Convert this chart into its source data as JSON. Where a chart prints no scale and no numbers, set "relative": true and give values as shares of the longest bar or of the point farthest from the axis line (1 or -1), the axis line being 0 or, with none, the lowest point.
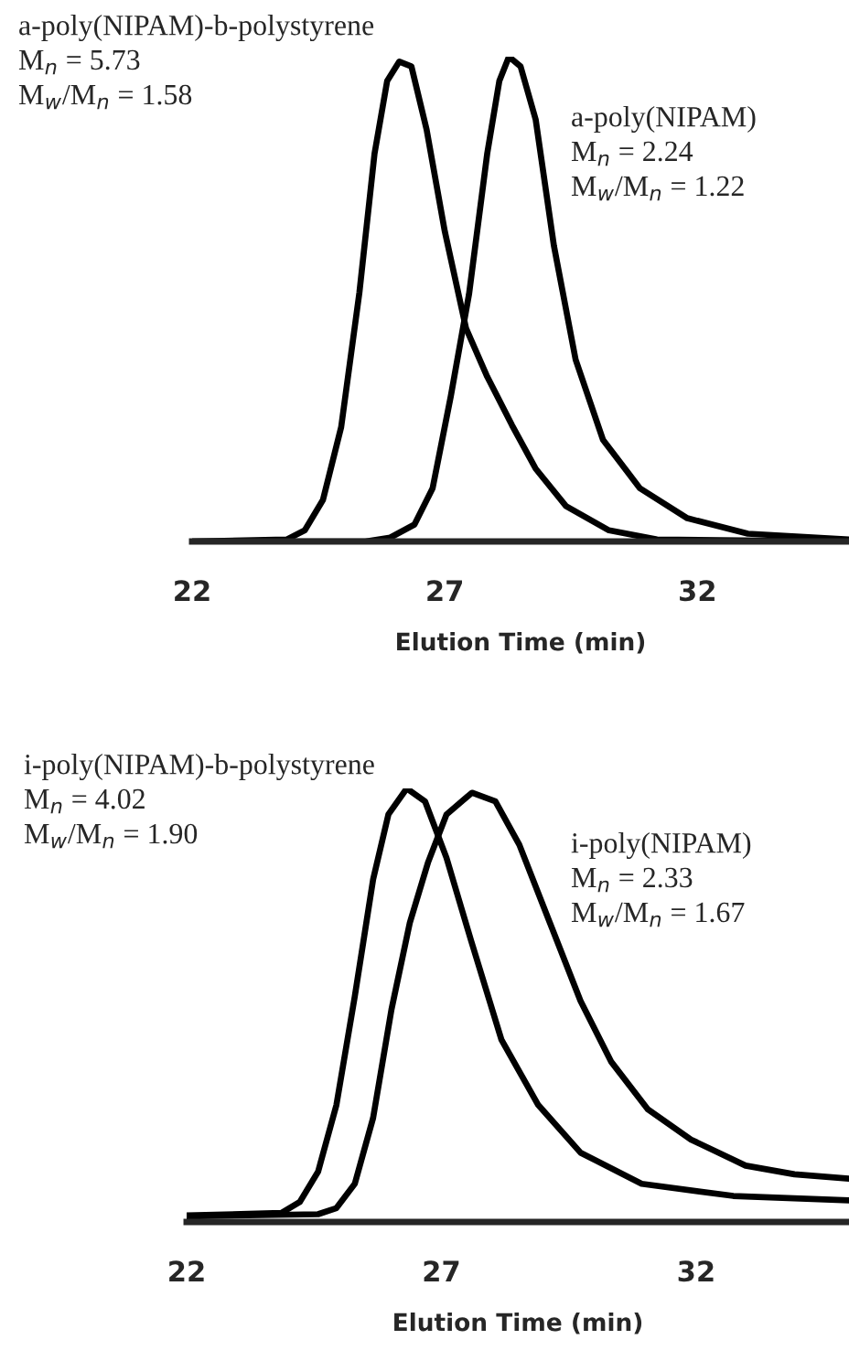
{
  "chart_data": [
    {
      "type": "line",
      "relative": true,
      "xlabel": "Elution Time (min)",
      "xlim": [
        22,
        35
      ],
      "xticks": [
        22,
        27,
        32
      ],
      "grid": false,
      "legend": false,
      "tick_labels": "x",
      "annotations": [
        "a-poly(NIPAM)-b-polystyrene",
        "M$_{n}$ = 5.73",
        "M$_{w}$/M$_{n}$ = 1.58",
        "a-poly(NIPAM)",
        "M$_{n}$ = 2.24",
        "M$_{w}$/M$_{n}$ = 1.22"
      ],
      "series": [
        {
          "color": "#000000",
          "x": [
            22,
            23.87,
            24.23,
            24.59,
            24.95,
            25.31,
            25.61,
            25.86,
            26.1,
            26.34,
            26.64,
            27.0,
            27.42,
            27.84,
            28.33,
            28.8,
            29.4,
            30.25,
            31.2,
            35
          ],
          "values": [
            0,
            0.004,
            0.023,
            0.086,
            0.236,
            0.513,
            0.8,
            0.95,
            0.99,
            0.98,
            0.85,
            0.64,
            0.44,
            0.34,
            0.24,
            0.15,
            0.073,
            0.023,
            0.004,
            0
          ]
        },
        {
          "color": "#000000",
          "x": [
            22,
            25.43,
            25.92,
            26.4,
            26.76,
            27.12,
            27.48,
            27.84,
            28.08,
            28.27,
            28.5,
            28.8,
            29.16,
            29.59,
            30.13,
            30.86,
            31.8,
            33.0,
            35
          ],
          "values": [
            0,
            0,
            0.008,
            0.035,
            0.11,
            0.3,
            0.51,
            0.8,
            0.95,
            1.0,
            0.98,
            0.87,
            0.61,
            0.375,
            0.21,
            0.11,
            0.048,
            0.016,
            0.004
          ]
        }
      ]
    },
    {
      "type": "line",
      "relative": true,
      "xlabel": "Elution Time (min)",
      "xlim": [
        22,
        35
      ],
      "xticks": [
        22,
        27,
        32
      ],
      "grid": false,
      "legend": false,
      "tick_labels": "x",
      "annotations": [
        "i-poly(NIPAM)-b-polystyrene",
        "M$_{n}$ = 4.02",
        "M$_{w}$/M$_{n}$ = 1.90",
        "i-poly(NIPAM)",
        "M$_{n}$ = 2.33",
        "M$_{w}$/M$_{n}$ = 1.67"
      ],
      "series": [
        {
          "color": "#000000",
          "x": [
            22,
            23.86,
            24.22,
            24.58,
            24.94,
            25.3,
            25.66,
            25.96,
            26.32,
            26.68,
            27.1,
            27.58,
            28.18,
            28.9,
            29.73,
            30.93,
            32.73,
            35
          ],
          "values": [
            0.015,
            0.021,
            0.046,
            0.116,
            0.27,
            0.52,
            0.79,
            0.94,
            1.0,
            0.97,
            0.84,
            0.65,
            0.42,
            0.27,
            0.16,
            0.088,
            0.06,
            0.05
          ]
        },
        {
          "color": "#000000",
          "x": [
            22,
            24.58,
            24.94,
            25.3,
            25.66,
            26.02,
            26.38,
            26.74,
            27.1,
            27.6,
            28.06,
            28.53,
            29.13,
            29.73,
            30.33,
            31.05,
            31.9,
            32.97,
            33.93,
            35
          ],
          "values": [
            0.013,
            0.018,
            0.032,
            0.088,
            0.24,
            0.49,
            0.69,
            0.83,
            0.94,
            0.99,
            0.97,
            0.87,
            0.69,
            0.51,
            0.37,
            0.26,
            0.19,
            0.13,
            0.11,
            0.1
          ]
        }
      ]
    }
  ]
}
